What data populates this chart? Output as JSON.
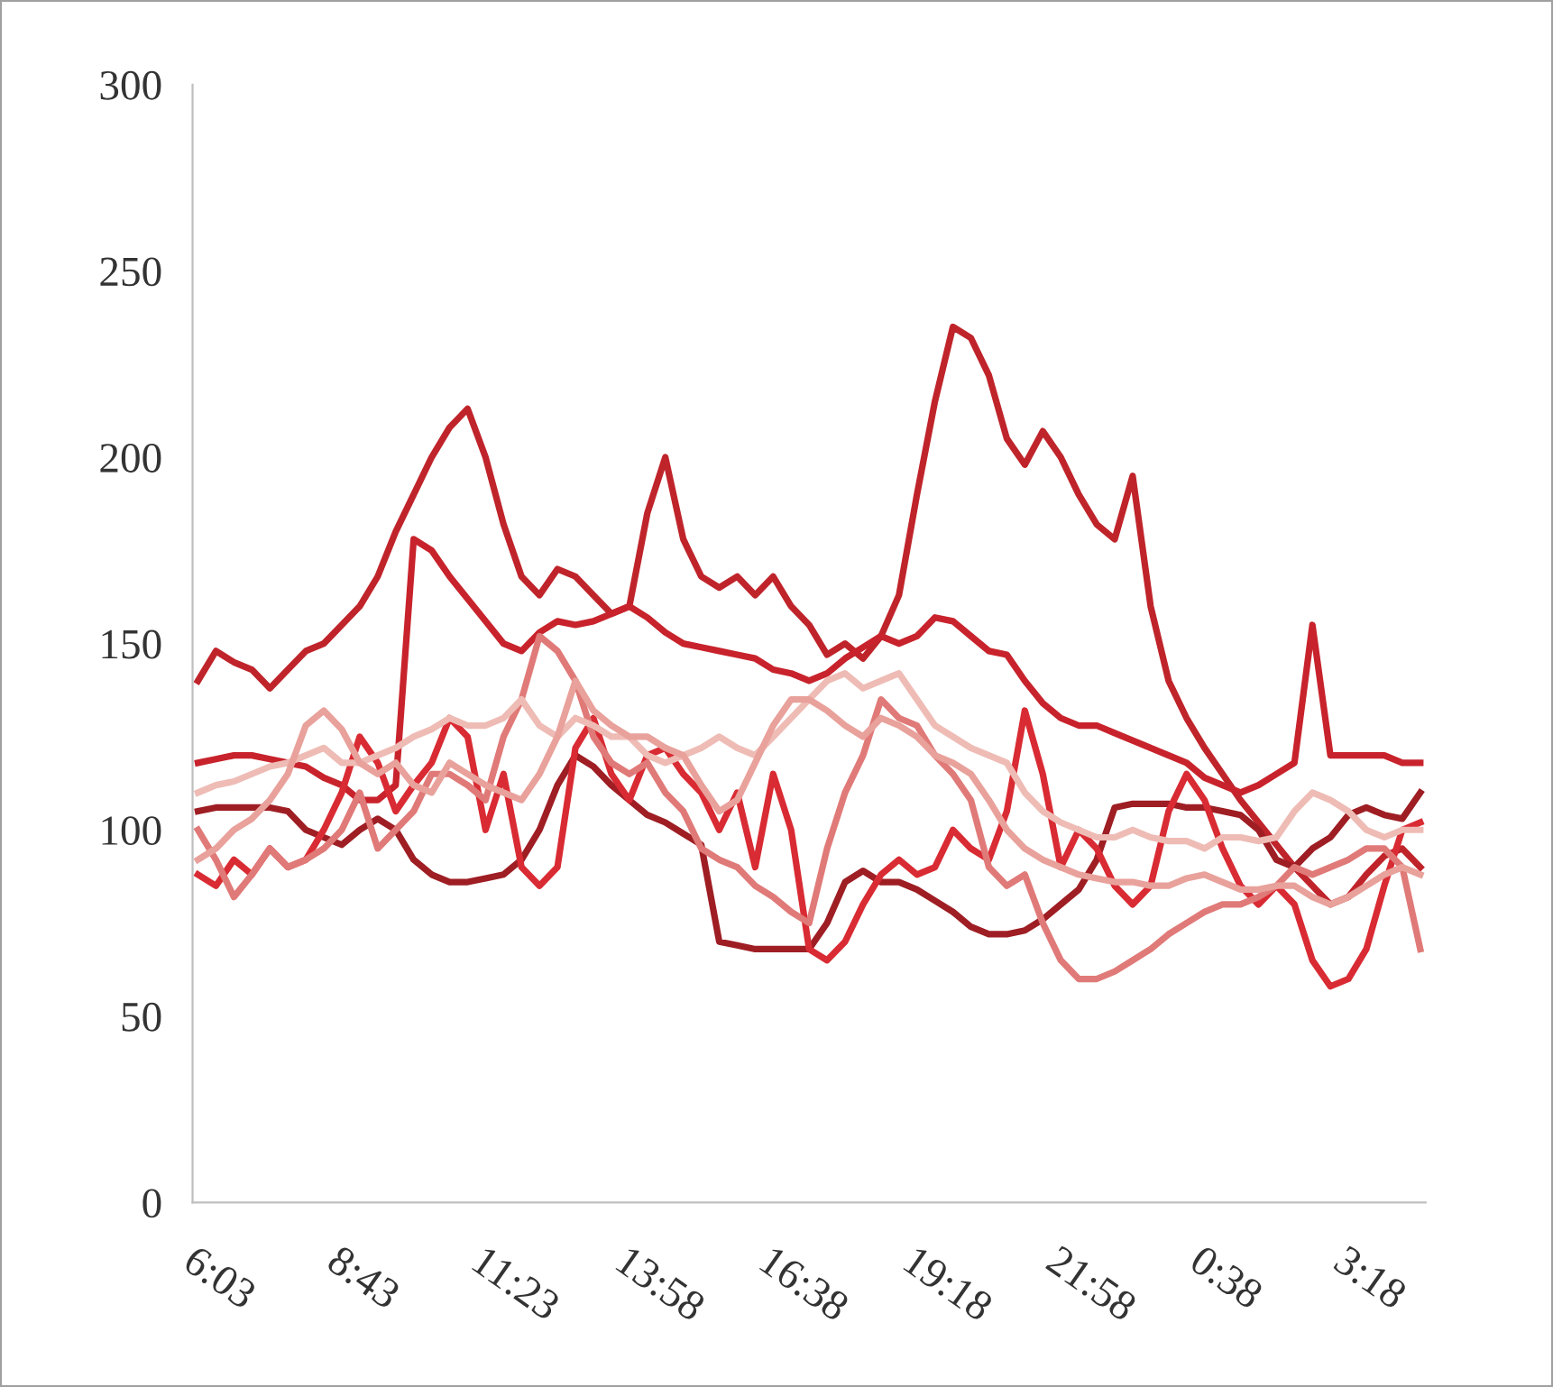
{
  "chart_data": {
    "type": "line",
    "ylim": [
      0,
      300
    ],
    "yticks": [
      0,
      50,
      100,
      150,
      200,
      250,
      300
    ],
    "grid": false,
    "legend": false,
    "marker": "none",
    "line_style": "solid",
    "categories": [
      "6:03",
      null,
      null,
      null,
      null,
      null,
      null,
      null,
      "8:43",
      null,
      null,
      null,
      null,
      null,
      null,
      null,
      "11:23",
      null,
      null,
      null,
      null,
      null,
      null,
      null,
      "13:58",
      null,
      null,
      null,
      null,
      null,
      null,
      null,
      "16:38",
      null,
      null,
      null,
      null,
      null,
      null,
      null,
      "19:18",
      null,
      null,
      null,
      null,
      null,
      null,
      null,
      "21:58",
      null,
      null,
      null,
      null,
      null,
      null,
      null,
      "0:38",
      null,
      null,
      null,
      null,
      null,
      null,
      null,
      "3:18",
      null,
      null,
      null,
      null
    ],
    "series": [
      {
        "color": "#c0242b",
        "values": [
          140,
          148,
          145,
          143,
          138,
          143,
          148,
          150,
          155,
          160,
          168,
          180,
          190,
          200,
          208,
          213,
          200,
          182,
          168,
          163,
          170,
          168,
          163,
          158,
          160,
          185,
          200,
          178,
          168,
          165,
          168,
          163,
          168,
          160,
          155,
          147,
          150,
          146,
          152,
          163,
          190,
          215,
          235,
          232,
          222,
          205,
          198,
          207,
          200,
          190,
          182,
          178,
          195,
          160,
          140,
          130,
          122,
          115,
          108,
          102,
          96,
          90,
          85,
          80,
          82,
          88,
          93,
          95,
          90
        ]
      },
      {
        "color": "#c8232c",
        "values": [
          118,
          119,
          120,
          120,
          119,
          118,
          117,
          114,
          112,
          108,
          108,
          112,
          178,
          175,
          168,
          162,
          156,
          150,
          148,
          153,
          156,
          155,
          156,
          158,
          160,
          157,
          153,
          150,
          149,
          148,
          147,
          146,
          143,
          142,
          140,
          142,
          146,
          149,
          152,
          150,
          152,
          157,
          156,
          152,
          148,
          147,
          140,
          134,
          130,
          128,
          128,
          126,
          124,
          122,
          120,
          118,
          114,
          112,
          110,
          112,
          115,
          118,
          155,
          120,
          120,
          120,
          120,
          118,
          118
        ]
      },
      {
        "color": "#9e1e24",
        "values": [
          105,
          106,
          106,
          106,
          106,
          105,
          100,
          98,
          96,
          100,
          103,
          100,
          92,
          88,
          86,
          86,
          87,
          88,
          92,
          100,
          112,
          120,
          117,
          112,
          108,
          104,
          102,
          99,
          96,
          70,
          69,
          68,
          68,
          68,
          68,
          75,
          86,
          89,
          86,
          86,
          84,
          81,
          78,
          74,
          72,
          72,
          73,
          76,
          80,
          84,
          92,
          106,
          107,
          107,
          107,
          106,
          106,
          105,
          104,
          100,
          92,
          90,
          95,
          98,
          104,
          106,
          104,
          103,
          110
        ]
      },
      {
        "color": "#d92b33",
        "values": [
          88,
          85,
          92,
          88,
          95,
          90,
          92,
          100,
          110,
          125,
          118,
          105,
          112,
          118,
          130,
          125,
          100,
          115,
          90,
          85,
          90,
          122,
          130,
          115,
          108,
          120,
          122,
          115,
          110,
          100,
          110,
          90,
          115,
          100,
          68,
          65,
          70,
          80,
          88,
          92,
          88,
          90,
          100,
          95,
          92,
          105,
          132,
          115,
          90,
          100,
          95,
          85,
          80,
          85,
          105,
          115,
          108,
          95,
          85,
          80,
          85,
          80,
          65,
          58,
          60,
          68,
          85,
          100,
          102
        ]
      },
      {
        "color": "#e07a78",
        "values": [
          100,
          92,
          82,
          88,
          95,
          90,
          92,
          95,
          100,
          110,
          95,
          100,
          105,
          115,
          115,
          112,
          108,
          125,
          135,
          152,
          148,
          140,
          125,
          118,
          115,
          118,
          110,
          105,
          95,
          92,
          90,
          85,
          82,
          78,
          75,
          95,
          110,
          120,
          135,
          130,
          128,
          120,
          115,
          108,
          90,
          85,
          88,
          75,
          65,
          60,
          60,
          62,
          65,
          68,
          72,
          75,
          78,
          80,
          80,
          82,
          85,
          90,
          88,
          90,
          92,
          95,
          95,
          90,
          68
        ]
      },
      {
        "color": "#eebcb5",
        "values": [
          110,
          112,
          113,
          115,
          117,
          118,
          120,
          122,
          118,
          118,
          120,
          122,
          125,
          127,
          130,
          128,
          128,
          130,
          135,
          128,
          125,
          130,
          128,
          125,
          125,
          120,
          118,
          120,
          122,
          125,
          122,
          120,
          125,
          130,
          135,
          140,
          142,
          138,
          140,
          142,
          135,
          128,
          125,
          122,
          120,
          118,
          110,
          105,
          102,
          100,
          98,
          98,
          100,
          98,
          97,
          97,
          95,
          98,
          98,
          97,
          98,
          105,
          110,
          108,
          105,
          100,
          98,
          100,
          100
        ]
      },
      {
        "color": "#e9a19b",
        "values": [
          92,
          95,
          100,
          103,
          108,
          115,
          128,
          132,
          127,
          118,
          115,
          118,
          112,
          110,
          118,
          115,
          112,
          110,
          108,
          115,
          125,
          140,
          132,
          128,
          125,
          125,
          122,
          120,
          112,
          105,
          108,
          118,
          128,
          135,
          135,
          132,
          128,
          125,
          130,
          128,
          125,
          120,
          118,
          115,
          108,
          100,
          95,
          92,
          90,
          88,
          87,
          86,
          86,
          85,
          85,
          87,
          88,
          86,
          84,
          84,
          85,
          85,
          82,
          80,
          82,
          85,
          88,
          90,
          88
        ]
      }
    ]
  }
}
